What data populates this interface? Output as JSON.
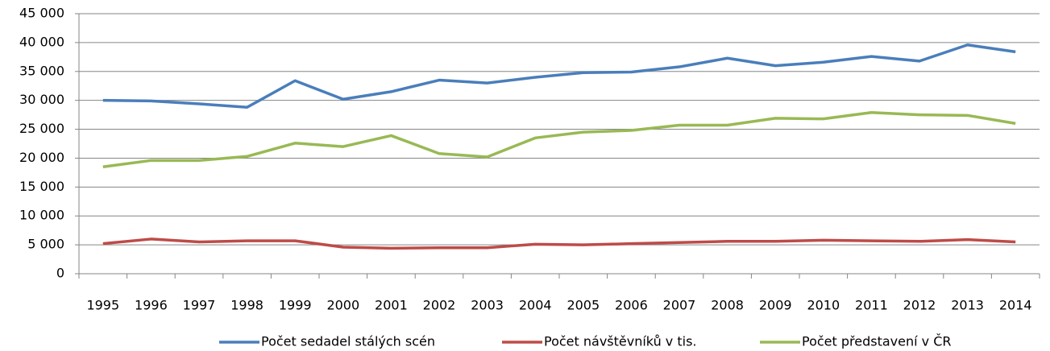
{
  "chart_data": {
    "type": "line",
    "categories": [
      "1995",
      "1996",
      "1997",
      "1998",
      "1999",
      "2000",
      "2001",
      "2002",
      "2003",
      "2004",
      "2005",
      "2006",
      "2007",
      "2008",
      "2009",
      "2010",
      "2011",
      "2012",
      "2013",
      "2014"
    ],
    "series": [
      {
        "name": "Počet sedadel stálých scén",
        "color": "#4a7ebb",
        "values": [
          30000,
          29900,
          29400,
          28800,
          33400,
          30200,
          31500,
          33500,
          33000,
          34000,
          34800,
          34900,
          35800,
          37300,
          36000,
          36600,
          37600,
          36800,
          39600,
          38400
        ]
      },
      {
        "name": "Počet návštěvníků v tis.",
        "color": "#be4b48",
        "values": [
          5200,
          6000,
          5500,
          5700,
          5700,
          4600,
          4400,
          4500,
          4500,
          5100,
          5000,
          5200,
          5400,
          5600,
          5600,
          5800,
          5700,
          5600,
          5900,
          5500
        ]
      },
      {
        "name": "Počet představení v ČR",
        "color": "#98b954",
        "values": [
          18500,
          19600,
          19600,
          20300,
          22600,
          22000,
          23900,
          20800,
          20200,
          23500,
          24500,
          24800,
          25700,
          25700,
          26900,
          26800,
          27900,
          27500,
          27400,
          26000
        ]
      }
    ],
    "ylim": [
      0,
      45000
    ],
    "yticks": [
      0,
      {
        "value": 5000,
        "label": "5 000"
      },
      {
        "value": 10000,
        "label": "10 000"
      },
      {
        "value": 15000,
        "label": "15 000"
      },
      {
        "value": 20000,
        "label": "20 000"
      },
      {
        "value": 25000,
        "label": "25 000"
      },
      {
        "value": 30000,
        "label": "30 000"
      },
      {
        "value": 35000,
        "label": "35 000"
      },
      {
        "value": 40000,
        "label": "40 000"
      },
      {
        "value": 45000,
        "label": "45 000"
      }
    ],
    "grid": true,
    "legend": "bottom"
  }
}
